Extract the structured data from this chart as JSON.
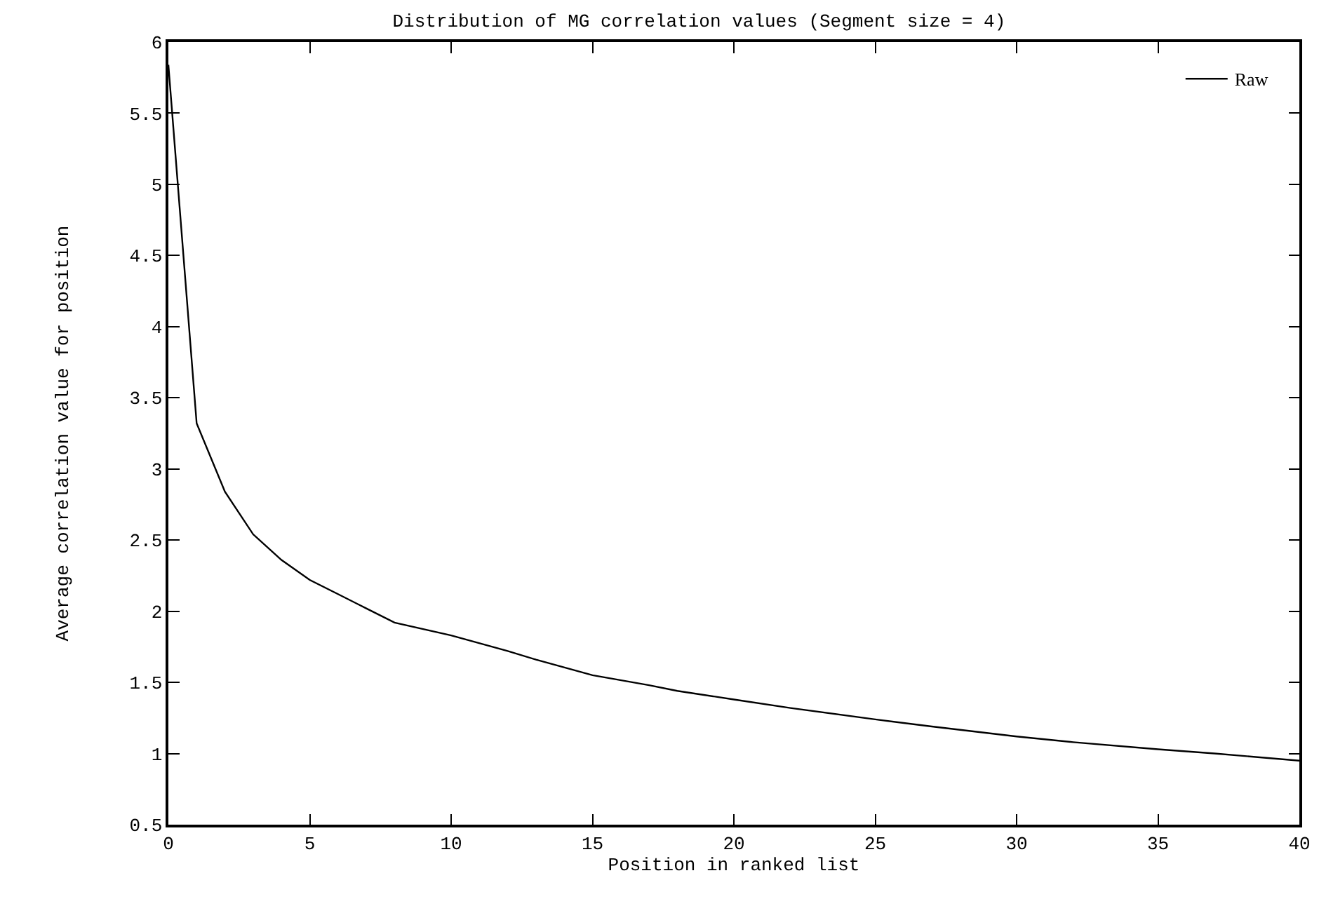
{
  "chart_data": {
    "type": "line",
    "title": "Distribution of MG correlation values (Segment size = 4)",
    "xlabel": "Position in ranked list",
    "ylabel": "Average correlation value for position",
    "x": [
      0,
      1,
      2,
      3,
      4,
      5,
      6,
      7,
      8,
      10,
      12,
      13,
      15,
      17,
      18,
      20,
      22,
      25,
      27,
      30,
      32,
      35,
      37,
      40
    ],
    "series": [
      {
        "name": "Raw",
        "color": "#000000",
        "values": [
          5.84,
          3.32,
          2.84,
          2.54,
          2.36,
          2.22,
          2.12,
          2.02,
          1.92,
          1.83,
          1.72,
          1.66,
          1.55,
          1.48,
          1.44,
          1.38,
          1.32,
          1.24,
          1.19,
          1.12,
          1.08,
          1.03,
          1.0,
          0.95
        ]
      }
    ],
    "xlim": [
      0,
      40
    ],
    "xticks": [
      0,
      5,
      10,
      15,
      20,
      25,
      30,
      35,
      40
    ],
    "ylim": [
      0.5,
      6
    ],
    "yticks": [
      0.5,
      1,
      1.5,
      2,
      2.5,
      3,
      3.5,
      4,
      4.5,
      5,
      5.5,
      6
    ],
    "grid": false,
    "legend": "top right",
    "marker": "none",
    "line_style": "solid"
  }
}
